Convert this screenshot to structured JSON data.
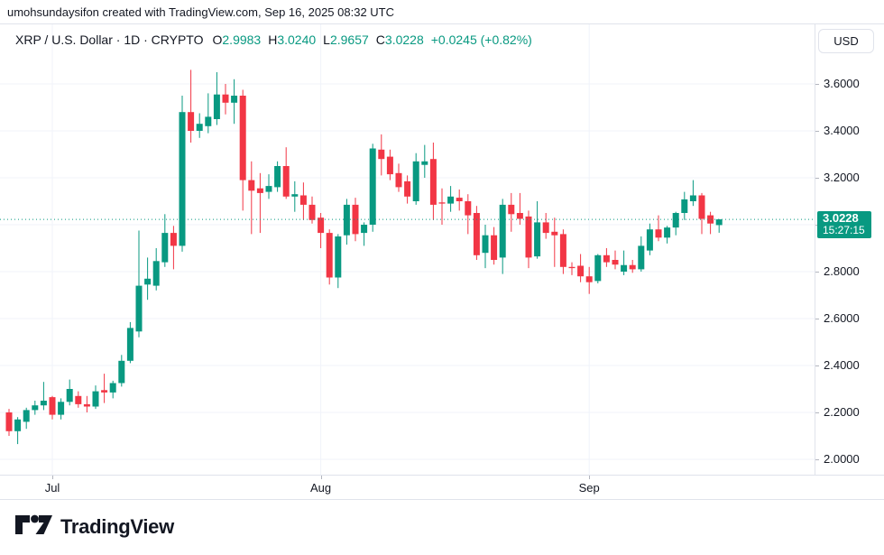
{
  "attribution": "umohsundaysifon created with TradingView.com, Sep 16, 2025 08:32 UTC",
  "header": {
    "symbol": "XRP / U.S. Dollar · 1D · CRYPTO",
    "ohlc": [
      {
        "label": "O",
        "value": "2.9983"
      },
      {
        "label": "H",
        "value": "3.0240"
      },
      {
        "label": "L",
        "value": "2.9657"
      },
      {
        "label": "C",
        "value": "3.0228"
      }
    ],
    "change": "+0.0245 (+0.82%)"
  },
  "price_axis": {
    "currency_button": "USD",
    "labels": [
      "3.6000",
      "3.4000",
      "3.2000",
      "3.0000",
      "2.8000",
      "2.6000",
      "2.4000",
      "2.2000",
      "2.0000"
    ],
    "last_price": "3.0228",
    "countdown": "15:27:15"
  },
  "time_axis": {
    "labels": [
      "Jul",
      "Aug",
      "Sep"
    ]
  },
  "footer": {
    "logo_text": "TradingView"
  },
  "colors": {
    "up": "#089981",
    "down": "#f23645",
    "price_line": "#089981",
    "grid": "#f0f3fa",
    "border": "#e0e3eb",
    "text": "#131722"
  },
  "chart_data": {
    "type": "candlestick",
    "title": "XRP / U.S. Dollar",
    "interval": "1D",
    "exchange": "CRYPTO",
    "currency": "USD",
    "ylim": [
      1.935,
      3.854
    ],
    "y_ticks": [
      3.6,
      3.4,
      3.2,
      3.0,
      2.8,
      2.6,
      2.4,
      2.2,
      2.0
    ],
    "price_line": 3.0228,
    "last_close": 3.0228,
    "change_abs": 0.0245,
    "change_pct": 0.82,
    "grid": true,
    "month_markers": [
      {
        "label": "Jul",
        "index": 5
      },
      {
        "label": "Aug",
        "index": 36
      },
      {
        "label": "Sep",
        "index": 67
      }
    ],
    "candles": [
      [
        2.2,
        2.215,
        2.1,
        2.12
      ],
      [
        2.12,
        2.18,
        2.065,
        2.17
      ],
      [
        2.16,
        2.22,
        2.13,
        2.21
      ],
      [
        2.21,
        2.25,
        2.19,
        2.23
      ],
      [
        2.23,
        2.33,
        2.21,
        2.25
      ],
      [
        2.265,
        2.27,
        2.17,
        2.19
      ],
      [
        2.19,
        2.26,
        2.17,
        2.245
      ],
      [
        2.245,
        2.34,
        2.23,
        2.3
      ],
      [
        2.27,
        2.29,
        2.22,
        2.235
      ],
      [
        2.235,
        2.27,
        2.2,
        2.225
      ],
      [
        2.225,
        2.315,
        2.215,
        2.29
      ],
      [
        2.295,
        2.365,
        2.24,
        2.285
      ],
      [
        2.285,
        2.335,
        2.26,
        2.325
      ],
      [
        2.325,
        2.445,
        2.31,
        2.42
      ],
      [
        2.42,
        2.585,
        2.41,
        2.56
      ],
      [
        2.545,
        2.975,
        2.52,
        2.74
      ],
      [
        2.745,
        2.86,
        2.68,
        2.77
      ],
      [
        2.74,
        2.9,
        2.72,
        2.845
      ],
      [
        2.84,
        3.045,
        2.82,
        2.965
      ],
      [
        2.965,
        2.995,
        2.81,
        2.91
      ],
      [
        2.91,
        3.55,
        2.885,
        3.48
      ],
      [
        3.48,
        3.66,
        3.35,
        3.4
      ],
      [
        3.4,
        3.475,
        3.37,
        3.43
      ],
      [
        3.42,
        3.56,
        3.39,
        3.46
      ],
      [
        3.45,
        3.65,
        3.425,
        3.555
      ],
      [
        3.555,
        3.6,
        3.47,
        3.52
      ],
      [
        3.52,
        3.62,
        3.43,
        3.55
      ],
      [
        3.55,
        3.575,
        3.06,
        3.19
      ],
      [
        3.19,
        3.27,
        2.96,
        3.145
      ],
      [
        3.155,
        3.22,
        2.965,
        3.135
      ],
      [
        3.14,
        3.215,
        3.11,
        3.165
      ],
      [
        3.16,
        3.27,
        3.14,
        3.25
      ],
      [
        3.25,
        3.33,
        3.11,
        3.12
      ],
      [
        3.12,
        3.185,
        3.055,
        3.13
      ],
      [
        3.125,
        3.18,
        3.02,
        3.085
      ],
      [
        3.085,
        3.12,
        3.005,
        3.02
      ],
      [
        3.03,
        3.05,
        2.9,
        2.965
      ],
      [
        2.965,
        2.98,
        2.745,
        2.775
      ],
      [
        2.775,
        2.96,
        2.73,
        2.95
      ],
      [
        2.955,
        3.11,
        2.915,
        3.085
      ],
      [
        3.085,
        3.115,
        2.93,
        2.96
      ],
      [
        2.965,
        3.01,
        2.91,
        3.0
      ],
      [
        3.0,
        3.345,
        2.97,
        3.325
      ],
      [
        3.32,
        3.385,
        3.21,
        3.28
      ],
      [
        3.29,
        3.32,
        3.19,
        3.215
      ],
      [
        3.22,
        3.26,
        3.14,
        3.16
      ],
      [
        3.185,
        3.21,
        3.09,
        3.12
      ],
      [
        3.1,
        3.305,
        3.085,
        3.27
      ],
      [
        3.255,
        3.34,
        3.2,
        3.27
      ],
      [
        3.28,
        3.35,
        3.02,
        3.085
      ],
      [
        3.095,
        3.155,
        3.0,
        3.09
      ],
      [
        3.09,
        3.165,
        3.055,
        3.12
      ],
      [
        3.115,
        3.15,
        3.06,
        3.1
      ],
      [
        3.1,
        3.13,
        2.96,
        3.04
      ],
      [
        3.05,
        3.08,
        2.85,
        2.87
      ],
      [
        2.88,
        3.0,
        2.815,
        2.955
      ],
      [
        2.955,
        2.99,
        2.83,
        2.85
      ],
      [
        2.86,
        3.11,
        2.79,
        3.085
      ],
      [
        3.085,
        3.135,
        2.97,
        3.045
      ],
      [
        3.05,
        3.135,
        3.0,
        3.025
      ],
      [
        3.035,
        3.06,
        2.815,
        2.86
      ],
      [
        2.865,
        3.1,
        2.855,
        3.01
      ],
      [
        3.01,
        3.05,
        2.94,
        2.965
      ],
      [
        2.97,
        3.03,
        2.82,
        2.955
      ],
      [
        2.96,
        2.98,
        2.79,
        2.82
      ],
      [
        2.82,
        2.84,
        2.785,
        2.815
      ],
      [
        2.825,
        2.875,
        2.755,
        2.78
      ],
      [
        2.78,
        2.82,
        2.705,
        2.755
      ],
      [
        2.76,
        2.875,
        2.75,
        2.87
      ],
      [
        2.87,
        2.9,
        2.82,
        2.84
      ],
      [
        2.85,
        2.89,
        2.81,
        2.83
      ],
      [
        2.8,
        2.89,
        2.785,
        2.828
      ],
      [
        2.828,
        2.85,
        2.795,
        2.81
      ],
      [
        2.81,
        2.95,
        2.8,
        2.91
      ],
      [
        2.89,
        3.005,
        2.87,
        2.98
      ],
      [
        2.98,
        3.04,
        2.93,
        2.945
      ],
      [
        2.945,
        2.995,
        2.92,
        2.988
      ],
      [
        2.988,
        3.055,
        2.955,
        3.05
      ],
      [
        3.05,
        3.14,
        3.02,
        3.108
      ],
      [
        3.1,
        3.19,
        3.08,
        3.125
      ],
      [
        3.125,
        3.135,
        2.96,
        3.025
      ],
      [
        3.04,
        3.055,
        2.96,
        3.005
      ],
      [
        2.9983,
        3.024,
        2.9657,
        3.0228
      ]
    ]
  }
}
